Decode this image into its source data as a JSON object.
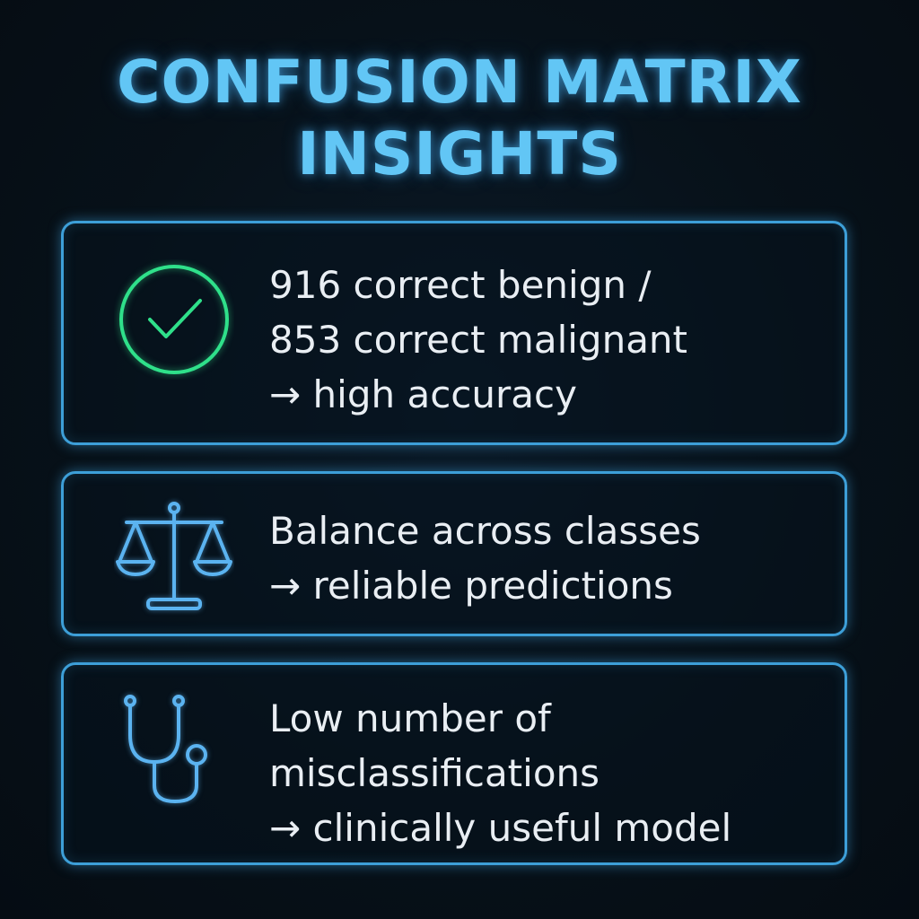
{
  "title": {
    "line1": "CONFUSION MATRIX",
    "line2": "INSIGHTS"
  },
  "colors": {
    "background": "#06101a",
    "title": "#62c6f5",
    "card_border": "#3d9fd8",
    "check_icon": "#2fe08a",
    "outline_icon": "#5bb3f0",
    "text": "#e9eef3"
  },
  "cards": [
    {
      "icon": "checkmark-circle-icon",
      "lines": [
        "916 correct benign /",
        "853 correct malignant",
        "→ high accuracy"
      ]
    },
    {
      "icon": "balance-scale-icon",
      "lines": [
        "Balance across classes",
        "→ reliable predictions"
      ]
    },
    {
      "icon": "stethoscope-icon",
      "lines": [
        "Low number of",
        "misclassifications",
        "→ clinically useful model"
      ]
    }
  ]
}
